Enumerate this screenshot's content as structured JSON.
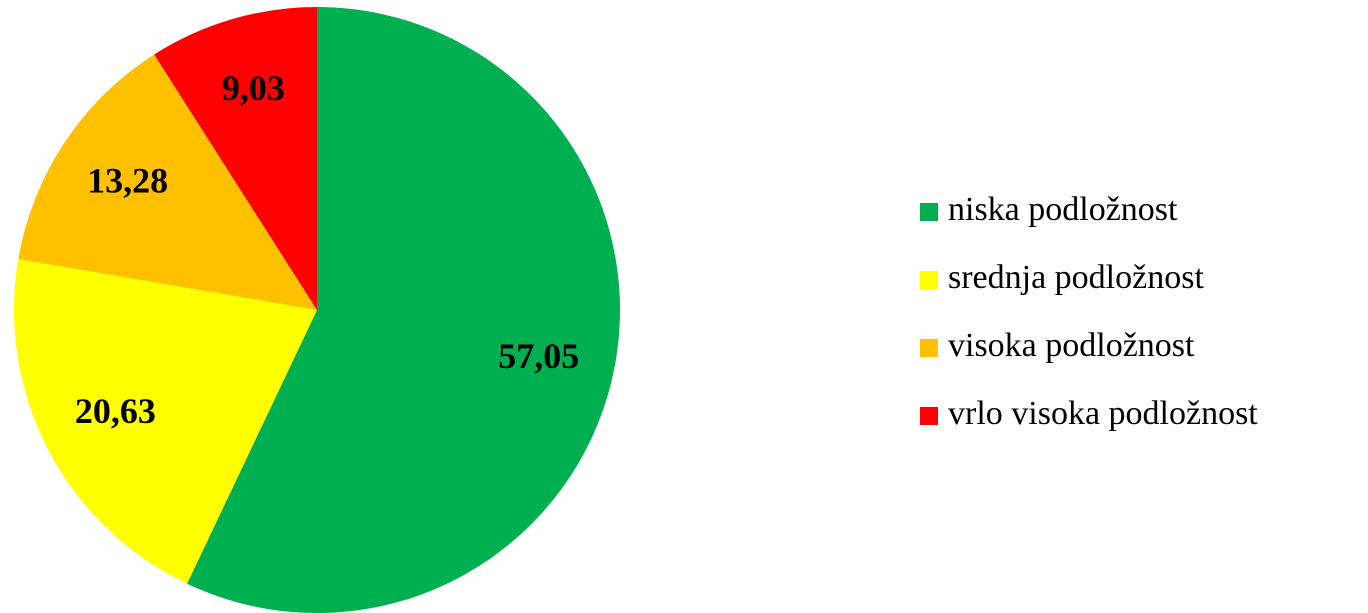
{
  "chart_data": {
    "type": "pie",
    "categories": [
      "niska podložnost",
      "srednja podložnost",
      "visoka podložnost",
      "vrlo visoka podložnost"
    ],
    "values": [
      57.05,
      20.63,
      13.28,
      9.03
    ],
    "value_labels": [
      "57,05",
      "20,63",
      "13,28",
      "9,03"
    ],
    "colors": [
      "#00b050",
      "#ffff00",
      "#ffc000",
      "#ff0000"
    ],
    "legend": "right"
  }
}
